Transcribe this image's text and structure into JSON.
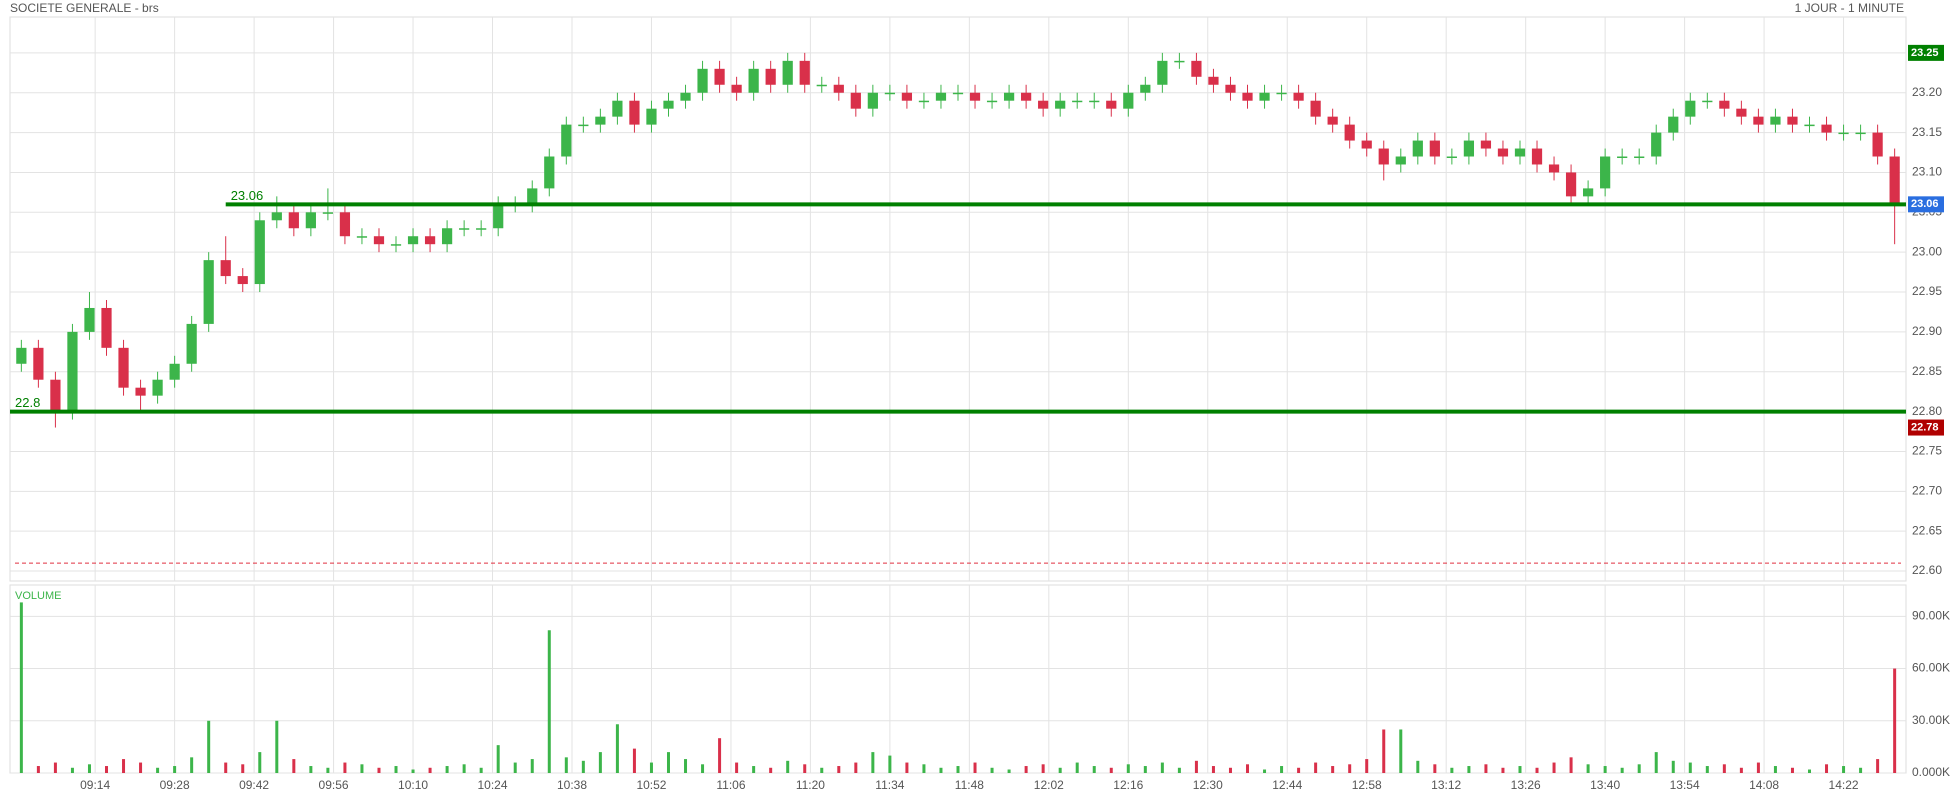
{
  "chart_data": {
    "type": "candlestick",
    "title": "SOCIETE GENERALE - brs",
    "subtitle": "1 JOUR - 1 MINUTE",
    "up_color": "#3cb54a",
    "down_color": "#d9304a",
    "grid": true,
    "x": [
      541,
      544,
      547,
      550,
      553,
      556,
      559,
      562,
      565,
      568,
      571,
      574,
      577,
      580,
      583,
      586,
      589,
      592,
      595,
      598,
      601,
      604,
      607,
      610,
      613,
      616,
      619,
      622,
      625,
      628,
      631,
      634,
      637,
      640,
      643,
      646,
      649,
      652,
      655,
      658,
      661,
      664,
      667,
      670,
      673,
      676,
      679,
      682,
      685,
      688,
      691,
      694,
      697,
      700,
      703,
      706,
      709,
      712,
      715,
      718,
      721,
      724,
      727,
      730,
      733,
      736,
      739,
      742,
      745,
      748,
      751,
      754,
      757,
      760,
      763,
      766,
      769,
      772,
      775,
      778,
      781,
      784,
      787,
      790,
      793,
      796,
      799,
      802,
      805,
      808,
      811,
      814,
      817,
      820,
      823,
      826,
      829,
      832,
      835,
      838,
      841,
      844,
      847,
      850,
      853,
      856,
      859,
      862,
      865,
      868,
      871
    ],
    "open": [
      22.86,
      22.88,
      22.84,
      22.8,
      22.9,
      22.93,
      22.88,
      22.83,
      22.82,
      22.84,
      22.86,
      22.91,
      22.99,
      22.97,
      22.96,
      23.04,
      23.05,
      23.03,
      23.05,
      23.05,
      23.02,
      23.02,
      23.01,
      23.01,
      23.02,
      23.01,
      23.03,
      23.03,
      23.03,
      23.06,
      23.06,
      23.08,
      23.12,
      23.16,
      23.16,
      23.17,
      23.19,
      23.16,
      23.18,
      23.19,
      23.2,
      23.23,
      23.21,
      23.2,
      23.23,
      23.21,
      23.24,
      23.21,
      23.21,
      23.2,
      23.18,
      23.2,
      23.2,
      23.19,
      23.19,
      23.2,
      23.2,
      23.19,
      23.19,
      23.2,
      23.19,
      23.18,
      23.19,
      23.19,
      23.19,
      23.18,
      23.2,
      23.21,
      23.24,
      23.24,
      23.22,
      23.21,
      23.2,
      23.19,
      23.2,
      23.2,
      23.19,
      23.17,
      23.16,
      23.14,
      23.13,
      23.11,
      23.12,
      23.14,
      23.12,
      23.12,
      23.14,
      23.13,
      23.12,
      23.13,
      23.11,
      23.1,
      23.07,
      23.08,
      23.12,
      23.12,
      23.12,
      23.15,
      23.17,
      23.19,
      23.19,
      23.18,
      23.17,
      23.16,
      23.17,
      23.16,
      23.16,
      23.15,
      23.15,
      23.15,
      23.12
    ],
    "high": [
      22.89,
      22.89,
      22.85,
      22.91,
      22.95,
      22.94,
      22.89,
      22.84,
      22.85,
      22.87,
      22.92,
      23.0,
      23.02,
      22.98,
      23.05,
      23.07,
      23.06,
      23.06,
      23.08,
      23.06,
      23.03,
      23.03,
      23.02,
      23.03,
      23.03,
      23.04,
      23.04,
      23.04,
      23.07,
      23.07,
      23.09,
      23.13,
      23.17,
      23.17,
      23.18,
      23.2,
      23.2,
      23.19,
      23.2,
      23.21,
      23.24,
      23.24,
      23.22,
      23.24,
      23.24,
      23.25,
      23.25,
      23.22,
      23.22,
      23.21,
      23.21,
      23.21,
      23.21,
      23.2,
      23.21,
      23.21,
      23.21,
      23.2,
      23.21,
      23.21,
      23.2,
      23.2,
      23.2,
      23.2,
      23.2,
      23.21,
      23.22,
      23.25,
      23.25,
      23.25,
      23.23,
      23.22,
      23.21,
      23.21,
      23.21,
      23.21,
      23.2,
      23.18,
      23.17,
      23.15,
      23.14,
      23.13,
      23.15,
      23.15,
      23.13,
      23.15,
      23.15,
      23.14,
      23.14,
      23.14,
      23.12,
      23.11,
      23.09,
      23.13,
      23.13,
      23.13,
      23.16,
      23.18,
      23.2,
      23.2,
      23.2,
      23.19,
      23.18,
      23.18,
      23.18,
      23.17,
      23.17,
      23.16,
      23.16,
      23.16,
      23.13
    ],
    "low": [
      22.85,
      22.83,
      22.78,
      22.79,
      22.89,
      22.87,
      22.82,
      22.8,
      22.81,
      22.83,
      22.85,
      22.9,
      22.96,
      22.95,
      22.95,
      23.03,
      23.02,
      23.02,
      23.04,
      23.01,
      23.01,
      23.0,
      23.0,
      23.0,
      23.0,
      23.0,
      23.02,
      23.02,
      23.02,
      23.05,
      23.05,
      23.07,
      23.11,
      23.15,
      23.15,
      23.16,
      23.15,
      23.15,
      23.17,
      23.18,
      23.19,
      23.2,
      23.19,
      23.19,
      23.2,
      23.2,
      23.2,
      23.2,
      23.19,
      23.17,
      23.17,
      23.19,
      23.18,
      23.18,
      23.18,
      23.19,
      23.18,
      23.18,
      23.18,
      23.18,
      23.17,
      23.17,
      23.18,
      23.18,
      23.17,
      23.17,
      23.19,
      23.2,
      23.23,
      23.21,
      23.2,
      23.19,
      23.18,
      23.18,
      23.19,
      23.18,
      23.16,
      23.15,
      23.13,
      23.12,
      23.09,
      23.1,
      23.11,
      23.11,
      23.11,
      23.11,
      23.12,
      23.11,
      23.11,
      23.1,
      23.09,
      23.06,
      23.06,
      23.07,
      23.11,
      23.11,
      23.11,
      23.14,
      23.16,
      23.18,
      23.17,
      23.16,
      23.15,
      23.15,
      23.15,
      23.15,
      23.14,
      23.14,
      23.14,
      23.11,
      23.01
    ],
    "close": [
      22.88,
      22.84,
      22.8,
      22.9,
      22.93,
      22.88,
      22.83,
      22.82,
      22.84,
      22.86,
      22.91,
      22.99,
      22.97,
      22.96,
      23.04,
      23.05,
      23.03,
      23.05,
      23.05,
      23.02,
      23.02,
      23.01,
      23.01,
      23.02,
      23.01,
      23.03,
      23.03,
      23.03,
      23.06,
      23.06,
      23.08,
      23.12,
      23.16,
      23.16,
      23.17,
      23.19,
      23.16,
      23.18,
      23.19,
      23.2,
      23.23,
      23.21,
      23.2,
      23.23,
      23.21,
      23.24,
      23.21,
      23.21,
      23.2,
      23.18,
      23.2,
      23.2,
      23.19,
      23.19,
      23.2,
      23.2,
      23.19,
      23.19,
      23.2,
      23.19,
      23.18,
      23.19,
      23.19,
      23.19,
      23.18,
      23.2,
      23.21,
      23.24,
      23.24,
      23.22,
      23.21,
      23.2,
      23.19,
      23.2,
      23.2,
      23.19,
      23.17,
      23.16,
      23.14,
      23.13,
      23.11,
      23.12,
      23.14,
      23.12,
      23.12,
      23.14,
      23.13,
      23.12,
      23.13,
      23.11,
      23.1,
      23.07,
      23.08,
      23.12,
      23.12,
      23.12,
      23.15,
      23.17,
      23.19,
      23.19,
      23.18,
      23.17,
      23.16,
      23.17,
      23.16,
      23.16,
      23.15,
      23.15,
      23.15,
      23.12,
      23.06
    ],
    "xlim": [
      539,
      873
    ],
    "xticks": [
      {
        "value": 554,
        "label": "09:14"
      },
      {
        "value": 568,
        "label": "09:28"
      },
      {
        "value": 582,
        "label": "09:42"
      },
      {
        "value": 596,
        "label": "09:56"
      },
      {
        "value": 610,
        "label": "10:10"
      },
      {
        "value": 624,
        "label": "10:24"
      },
      {
        "value": 638,
        "label": "10:38"
      },
      {
        "value": 652,
        "label": "10:52"
      },
      {
        "value": 666,
        "label": "11:06"
      },
      {
        "value": 680,
        "label": "11:20"
      },
      {
        "value": 694,
        "label": "11:34"
      },
      {
        "value": 708,
        "label": "11:48"
      },
      {
        "value": 722,
        "label": "12:02"
      },
      {
        "value": 736,
        "label": "12:16"
      },
      {
        "value": 750,
        "label": "12:30"
      },
      {
        "value": 764,
        "label": "12:44"
      },
      {
        "value": 778,
        "label": "12:58"
      },
      {
        "value": 792,
        "label": "13:12"
      },
      {
        "value": 806,
        "label": "13:26"
      },
      {
        "value": 820,
        "label": "13:40"
      },
      {
        "value": 834,
        "label": "13:54"
      },
      {
        "value": 848,
        "label": "14:08"
      },
      {
        "value": 862,
        "label": "14:22"
      }
    ],
    "ylim": [
      22.5875,
      23.295
    ],
    "yticks": [
      {
        "value": 22.6,
        "label": "22.60"
      },
      {
        "value": 22.65,
        "label": "22.65"
      },
      {
        "value": 22.7,
        "label": "22.70"
      },
      {
        "value": 22.75,
        "label": "22.75"
      },
      {
        "value": 22.8,
        "label": "22.80"
      },
      {
        "value": 22.85,
        "label": "22.85"
      },
      {
        "value": 22.9,
        "label": "22.90"
      },
      {
        "value": 22.95,
        "label": "22.95"
      },
      {
        "value": 23.0,
        "label": "23.00"
      },
      {
        "value": 23.05,
        "label": "23.05"
      },
      {
        "value": 23.1,
        "label": "23.10"
      },
      {
        "value": 23.15,
        "label": "23.15"
      },
      {
        "value": 23.2,
        "label": "23.20"
      },
      {
        "value": 23.25,
        "label": "23.25"
      }
    ],
    "levels": [
      {
        "value": 23.06,
        "label": "23.06",
        "start": 577,
        "color": "#008000"
      },
      {
        "value": 22.8,
        "label": "22.8",
        "start": 539,
        "color": "#008000"
      }
    ],
    "reference_line": {
      "value": 22.61,
      "color": "#e03040",
      "dashed": true
    },
    "badges": [
      {
        "value": 23.25,
        "color": "#008000"
      },
      {
        "value": 23.06,
        "color": "#2a6ee0"
      },
      {
        "value": 22.78,
        "color": "#b00000"
      }
    ],
    "volume": {
      "title": "VOLUME",
      "values": [
        98000,
        4000,
        6000,
        3000,
        5000,
        4000,
        8000,
        6000,
        3000,
        4000,
        9000,
        30000,
        6000,
        5000,
        12000,
        30000,
        8000,
        4000,
        3000,
        6000,
        5000,
        3000,
        4000,
        2000,
        3000,
        4000,
        5000,
        3000,
        16000,
        6000,
        8000,
        82000,
        9000,
        7000,
        12000,
        28000,
        14000,
        6000,
        12000,
        8000,
        5000,
        20000,
        6000,
        4000,
        3000,
        7000,
        5000,
        3000,
        4000,
        6000,
        12000,
        10000,
        6000,
        5000,
        3000,
        4000,
        6000,
        3000,
        2000,
        4000,
        5000,
        3000,
        6000,
        4000,
        3000,
        5000,
        4000,
        6000,
        3000,
        7000,
        4000,
        3000,
        5000,
        2000,
        4000,
        3000,
        6000,
        4000,
        5000,
        8000,
        25000,
        25000,
        7000,
        5000,
        3000,
        4000,
        5000,
        3000,
        4000,
        3000,
        6000,
        9000,
        5000,
        4000,
        3000,
        5000,
        12000,
        7000,
        6000,
        4000,
        5000,
        3000,
        6000,
        4000,
        3000,
        2000,
        5000,
        4000,
        3000,
        8000,
        60000
      ],
      "ylim": [
        0,
        108000
      ],
      "yticks": [
        {
          "value": 0,
          "label": "0.000K"
        },
        {
          "value": 30000,
          "label": "30.00K"
        },
        {
          "value": 60000,
          "label": "60.00K"
        },
        {
          "value": 90000,
          "label": "90.00K"
        }
      ]
    }
  }
}
